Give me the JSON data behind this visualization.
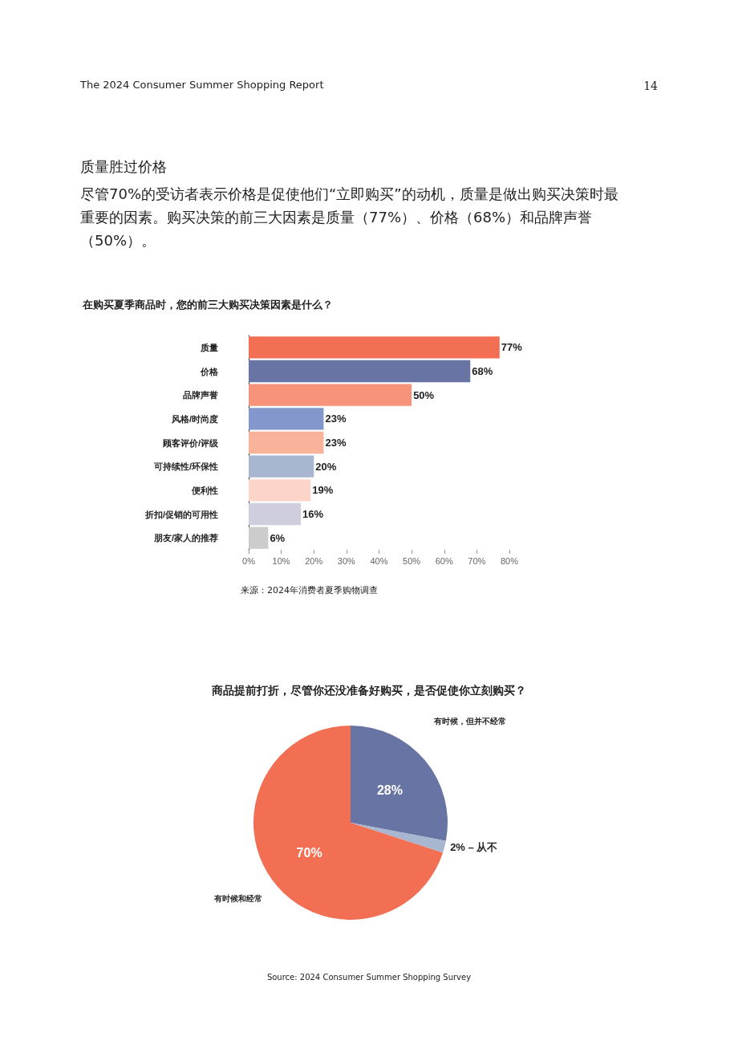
{
  "chart_data": [
    {
      "type": "bar",
      "orientation": "horizontal",
      "title": "在购买夏季商品时，您的前三大购买决策因素是什么？",
      "categories": [
        "质量",
        "价格",
        "品牌声誉",
        "风格/时尚度",
        "顾客评价/评级",
        "可持续性/环保性",
        "便利性",
        "折扣/促销的可用性",
        "朋友/家人的推荐"
      ],
      "values": [
        77,
        68,
        50,
        23,
        23,
        20,
        19,
        16,
        6
      ],
      "colors": [
        "#f26f53",
        "#6874a4",
        "#f7937a",
        "#8497cc",
        "#f9b39b",
        "#a9b6cf",
        "#fdd5c8",
        "#cfcedf",
        "#cccccc"
      ],
      "value_labels": [
        "77%",
        "68%",
        "50%",
        "23%",
        "23%",
        "20%",
        "19%",
        "16%",
        "6%"
      ],
      "xlim": [
        0,
        80
      ],
      "xticks": [
        {
          "value": 0,
          "label": "0%"
        },
        {
          "value": 10,
          "label": "10%"
        },
        {
          "value": 20,
          "label": "20%"
        },
        {
          "value": 30,
          "label": "30%"
        },
        {
          "value": 40,
          "label": "40%"
        },
        {
          "value": 50,
          "label": "50%"
        },
        {
          "value": 60,
          "label": "60%"
        },
        {
          "value": 70,
          "label": "70%"
        },
        {
          "value": 80,
          "label": "80%"
        }
      ],
      "grid": false,
      "legend": false,
      "annotations": [
        "The 2024 Consumer Summer Shopping Report",
        "14",
        "质量胜过价格",
        "尽管70%的受访者表示价格是促使他们“立即购买”的动机，质量是做出购买决策时最重要的因素。购买决策的前三大因素是质量（77%）、价格（68%）和品牌声誉（50%）。",
        "来源：2024年消费者夏季购物调查"
      ]
    },
    {
      "type": "pie",
      "title": "商品提前打折，尽管你还没准备好购买，是否促使你立刻购买？",
      "categories": [
        "有时候，但并不经常",
        null,
        "有时候和经常"
      ],
      "values": [
        28,
        2,
        70
      ],
      "colors": [
        "#6874a4",
        "#a9b6cf",
        "#f26f53"
      ],
      "value_labels": [
        "28%",
        "2% – 从不",
        "70%"
      ],
      "legend": false,
      "annotations": [
        "Source: 2024 Consumer Summer Shopping Survey"
      ]
    }
  ]
}
